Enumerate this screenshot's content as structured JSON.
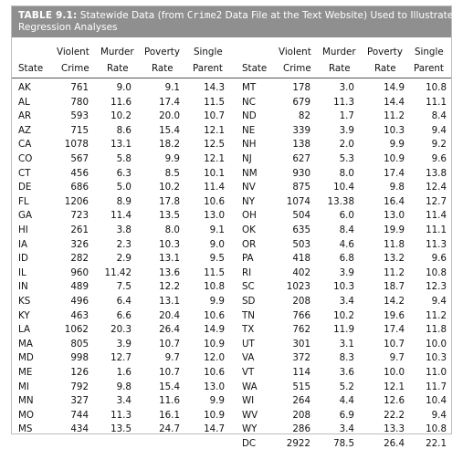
{
  "title": {
    "label": "TABLE 9.1:",
    "text_before": "Statewide Data (from ",
    "file_name": "Crime2",
    "text_after": " Data File at the Text Website) Used to Illustrate",
    "line2": "Regression Analyses"
  },
  "headers": {
    "state": "State",
    "violent_top": "Violent",
    "violent_bottom": "Crime",
    "murder_top": "Murder",
    "murder_bottom": "Rate",
    "poverty_top": "Poverty",
    "poverty_bottom": "Rate",
    "single_top": "Single",
    "single_bottom": "Parent"
  },
  "left_rows": [
    [
      "AK",
      "761",
      "9.0",
      "9.1",
      "14.3"
    ],
    [
      "AL",
      "780",
      "11.6",
      "17.4",
      "11.5"
    ],
    [
      "AR",
      "593",
      "10.2",
      "20.0",
      "10.7"
    ],
    [
      "AZ",
      "715",
      "8.6",
      "15.4",
      "12.1"
    ],
    [
      "CA",
      "1078",
      "13.1",
      "18.2",
      "12.5"
    ],
    [
      "CO",
      "567",
      "5.8",
      "9.9",
      "12.1"
    ],
    [
      "CT",
      "456",
      "6.3",
      "8.5",
      "10.1"
    ],
    [
      "DE",
      "686",
      "5.0",
      "10.2",
      "11.4"
    ],
    [
      "FL",
      "1206",
      "8.9",
      "17.8",
      "10.6"
    ],
    [
      "GA",
      "723",
      "11.4",
      "13.5",
      "13.0"
    ],
    [
      "HI",
      "261",
      "3.8",
      "8.0",
      "9.1"
    ],
    [
      "IA",
      "326",
      "2.3",
      "10.3",
      "9.0"
    ],
    [
      "ID",
      "282",
      "2.9",
      "13.1",
      "9.5"
    ],
    [
      "IL",
      "960",
      "11.42",
      "13.6",
      "11.5"
    ],
    [
      "IN",
      "489",
      "7.5",
      "12.2",
      "10.8"
    ],
    [
      "KS",
      "496",
      "6.4",
      "13.1",
      "9.9"
    ],
    [
      "KY",
      "463",
      "6.6",
      "20.4",
      "10.6"
    ],
    [
      "LA",
      "1062",
      "20.3",
      "26.4",
      "14.9"
    ],
    [
      "MA",
      "805",
      "3.9",
      "10.7",
      "10.9"
    ],
    [
      "MD",
      "998",
      "12.7",
      "9.7",
      "12.0"
    ],
    [
      "ME",
      "126",
      "1.6",
      "10.7",
      "10.6"
    ],
    [
      "MI",
      "792",
      "9.8",
      "15.4",
      "13.0"
    ],
    [
      "MN",
      "327",
      "3.4",
      "11.6",
      "9.9"
    ],
    [
      "MO",
      "744",
      "11.3",
      "16.1",
      "10.9"
    ],
    [
      "MS",
      "434",
      "13.5",
      "24.7",
      "14.7"
    ]
  ],
  "right_rows": [
    [
      "MT",
      "178",
      "3.0",
      "14.9",
      "10.8"
    ],
    [
      "NC",
      "679",
      "11.3",
      "14.4",
      "11.1"
    ],
    [
      "ND",
      "82",
      "1.7",
      "11.2",
      "8.4"
    ],
    [
      "NE",
      "339",
      "3.9",
      "10.3",
      "9.4"
    ],
    [
      "NH",
      "138",
      "2.0",
      "9.9",
      "9.2"
    ],
    [
      "NJ",
      "627",
      "5.3",
      "10.9",
      "9.6"
    ],
    [
      "NM",
      "930",
      "8.0",
      "17.4",
      "13.8"
    ],
    [
      "NV",
      "875",
      "10.4",
      "9.8",
      "12.4"
    ],
    [
      "NY",
      "1074",
      "13.38",
      "16.4",
      "12.7"
    ],
    [
      "OH",
      "504",
      "6.0",
      "13.0",
      "11.4"
    ],
    [
      "OK",
      "635",
      "8.4",
      "19.9",
      "11.1"
    ],
    [
      "OR",
      "503",
      "4.6",
      "11.8",
      "11.3"
    ],
    [
      "PA",
      "418",
      "6.8",
      "13.2",
      "9.6"
    ],
    [
      "RI",
      "402",
      "3.9",
      "11.2",
      "10.8"
    ],
    [
      "SC",
      "1023",
      "10.3",
      "18.7",
      "12.3"
    ],
    [
      "SD",
      "208",
      "3.4",
      "14.2",
      "9.4"
    ],
    [
      "TN",
      "766",
      "10.2",
      "19.6",
      "11.2"
    ],
    [
      "TX",
      "762",
      "11.9",
      "17.4",
      "11.8"
    ],
    [
      "UT",
      "301",
      "3.1",
      "10.7",
      "10.0"
    ],
    [
      "VA",
      "372",
      "8.3",
      "9.7",
      "10.3"
    ],
    [
      "VT",
      "114",
      "3.6",
      "10.0",
      "11.0"
    ],
    [
      "WA",
      "515",
      "5.2",
      "12.1",
      "11.7"
    ],
    [
      "WI",
      "264",
      "4.4",
      "12.6",
      "10.4"
    ],
    [
      "WV",
      "208",
      "6.9",
      "22.2",
      "9.4"
    ],
    [
      "WY",
      "286",
      "3.4",
      "13.3",
      "10.8"
    ],
    [
      "DC",
      "2922",
      "78.5",
      "26.4",
      "22.1"
    ]
  ]
}
